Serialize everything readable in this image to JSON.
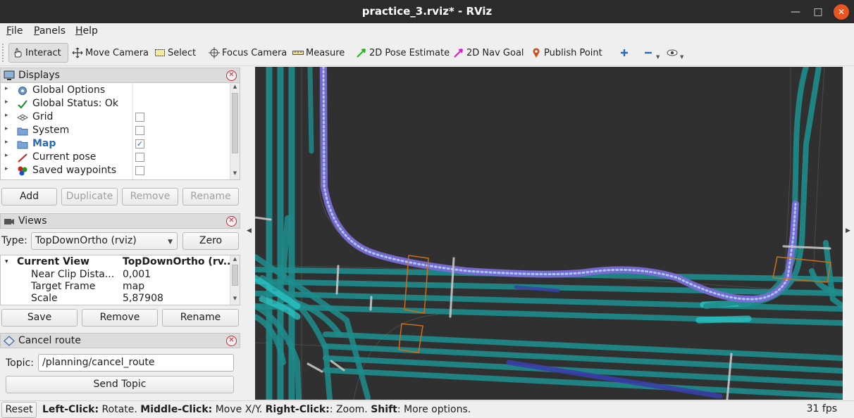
{
  "window": {
    "title": "practice_3.rviz* - RViz"
  },
  "menubar": [
    "File",
    "Panels",
    "Help"
  ],
  "toolbar": {
    "tools": [
      {
        "label": "Interact",
        "icon": "hand-cursor-icon",
        "active": true
      },
      {
        "label": "Move Camera",
        "icon": "move-arrows-icon"
      },
      {
        "label": "Select",
        "icon": "selection-box-icon"
      },
      {
        "label": "Focus Camera",
        "icon": "crosshair-icon"
      },
      {
        "label": "Measure",
        "icon": "ruler-icon"
      },
      {
        "label": "2D Pose Estimate",
        "icon": "green-arrow-icon"
      },
      {
        "label": "2D Nav Goal",
        "icon": "magenta-arrow-icon"
      },
      {
        "label": "Publish Point",
        "icon": "map-pin-icon"
      }
    ]
  },
  "displays": {
    "title": "Displays",
    "items": [
      {
        "label": "Global Options",
        "icon": "gear-icon",
        "checked": null,
        "bold": false
      },
      {
        "label": "Global Status: Ok",
        "icon": "checkmark-icon",
        "checked": null,
        "bold": false
      },
      {
        "label": "Grid",
        "icon": "grid-icon",
        "checked": false,
        "bold": false
      },
      {
        "label": "System",
        "icon": "folder-icon",
        "checked": false,
        "bold": false
      },
      {
        "label": "Map",
        "icon": "folder-icon",
        "checked": true,
        "bold": true
      },
      {
        "label": "Current pose",
        "icon": "red-arrow-icon",
        "checked": false,
        "bold": false
      },
      {
        "label": "Saved waypoints",
        "icon": "marker-array-icon",
        "checked": false,
        "bold": false
      }
    ],
    "buttons": {
      "add": "Add",
      "duplicate": "Duplicate",
      "remove": "Remove",
      "rename": "Rename"
    }
  },
  "views": {
    "title": "Views",
    "type_label": "Type:",
    "type_value": "TopDownOrtho (rviz)",
    "zero_button": "Zero",
    "current_view": {
      "key": "Current View",
      "value": "TopDownOrtho (rv..."
    },
    "properties": [
      {
        "key": "Near Clip Dista...",
        "value": "0,001"
      },
      {
        "key": "Target Frame",
        "value": "map"
      },
      {
        "key": "Scale",
        "value": "5,87908"
      }
    ],
    "buttons": {
      "save": "Save",
      "remove": "Remove",
      "rename": "Rename"
    }
  },
  "cancel_route": {
    "title": "Cancel route",
    "topic_label": "Topic:",
    "topic_value": "/planning/cancel_route",
    "send_button": "Send Topic"
  },
  "status": {
    "reset": "Reset",
    "left_click_key": "Left-Click:",
    "left_click_val": " Rotate. ",
    "middle_click_key": "Middle-Click:",
    "middle_click_val": " Move X/Y. ",
    "right_click_key": "Right-Click:",
    "right_click_val": ": Zoom. ",
    "shift_key": "Shift",
    "shift_val": ": More options.",
    "fps": "31 fps"
  },
  "colors": {
    "lane": "#1f8d8d",
    "lane_bright": "#2bc6c6",
    "route": "#7b6bd6",
    "crosswalk": "#c8701a",
    "background": "#303030"
  }
}
